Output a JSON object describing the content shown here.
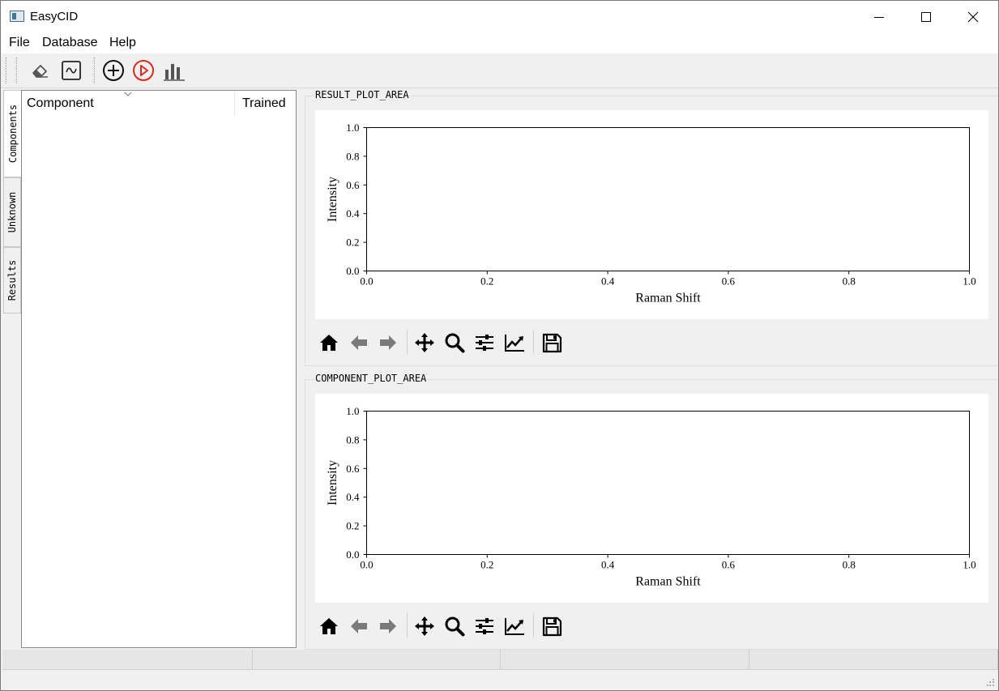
{
  "window": {
    "title": "EasyCID"
  },
  "menu": [
    "File",
    "Database",
    "Help"
  ],
  "toolbar_icons": [
    "eraser-icon",
    "spectrum-icon",
    "add-circle-icon",
    "play-circle-icon",
    "bar-chart-icon"
  ],
  "colors": {
    "accent_red": "#d92b1f"
  },
  "side_tabs": [
    "Components",
    "Unknown",
    "Results"
  ],
  "list": {
    "columns": [
      "Component",
      "Trained"
    ]
  },
  "plots": [
    {
      "group_title": "RESULT_PLOT_AREA",
      "chart_data": {
        "type": "line",
        "series": [],
        "xlabel": "Raman Shift",
        "ylabel": "Intensity",
        "xlim": [
          0.0,
          1.0
        ],
        "ylim": [
          0.0,
          1.0
        ],
        "xticks": [
          "0.0",
          "0.2",
          "0.4",
          "0.6",
          "0.8",
          "1.0"
        ],
        "yticks": [
          "0.0",
          "0.2",
          "0.4",
          "0.6",
          "0.8",
          "1.0"
        ]
      }
    },
    {
      "group_title": "COMPONENT_PLOT_AREA",
      "chart_data": {
        "type": "line",
        "series": [],
        "xlabel": "Raman Shift",
        "ylabel": "Intensity",
        "xlim": [
          0.0,
          1.0
        ],
        "ylim": [
          0.0,
          1.0
        ],
        "xticks": [
          "0.0",
          "0.2",
          "0.4",
          "0.6",
          "0.8",
          "1.0"
        ],
        "yticks": [
          "0.0",
          "0.2",
          "0.4",
          "0.6",
          "0.8",
          "1.0"
        ]
      }
    }
  ],
  "nav_toolbar_icons": [
    "home-icon",
    "back-arrow-icon",
    "forward-arrow-icon",
    "pan-icon",
    "zoom-icon",
    "configure-subplots-icon",
    "edit-axes-icon",
    "save-icon"
  ]
}
